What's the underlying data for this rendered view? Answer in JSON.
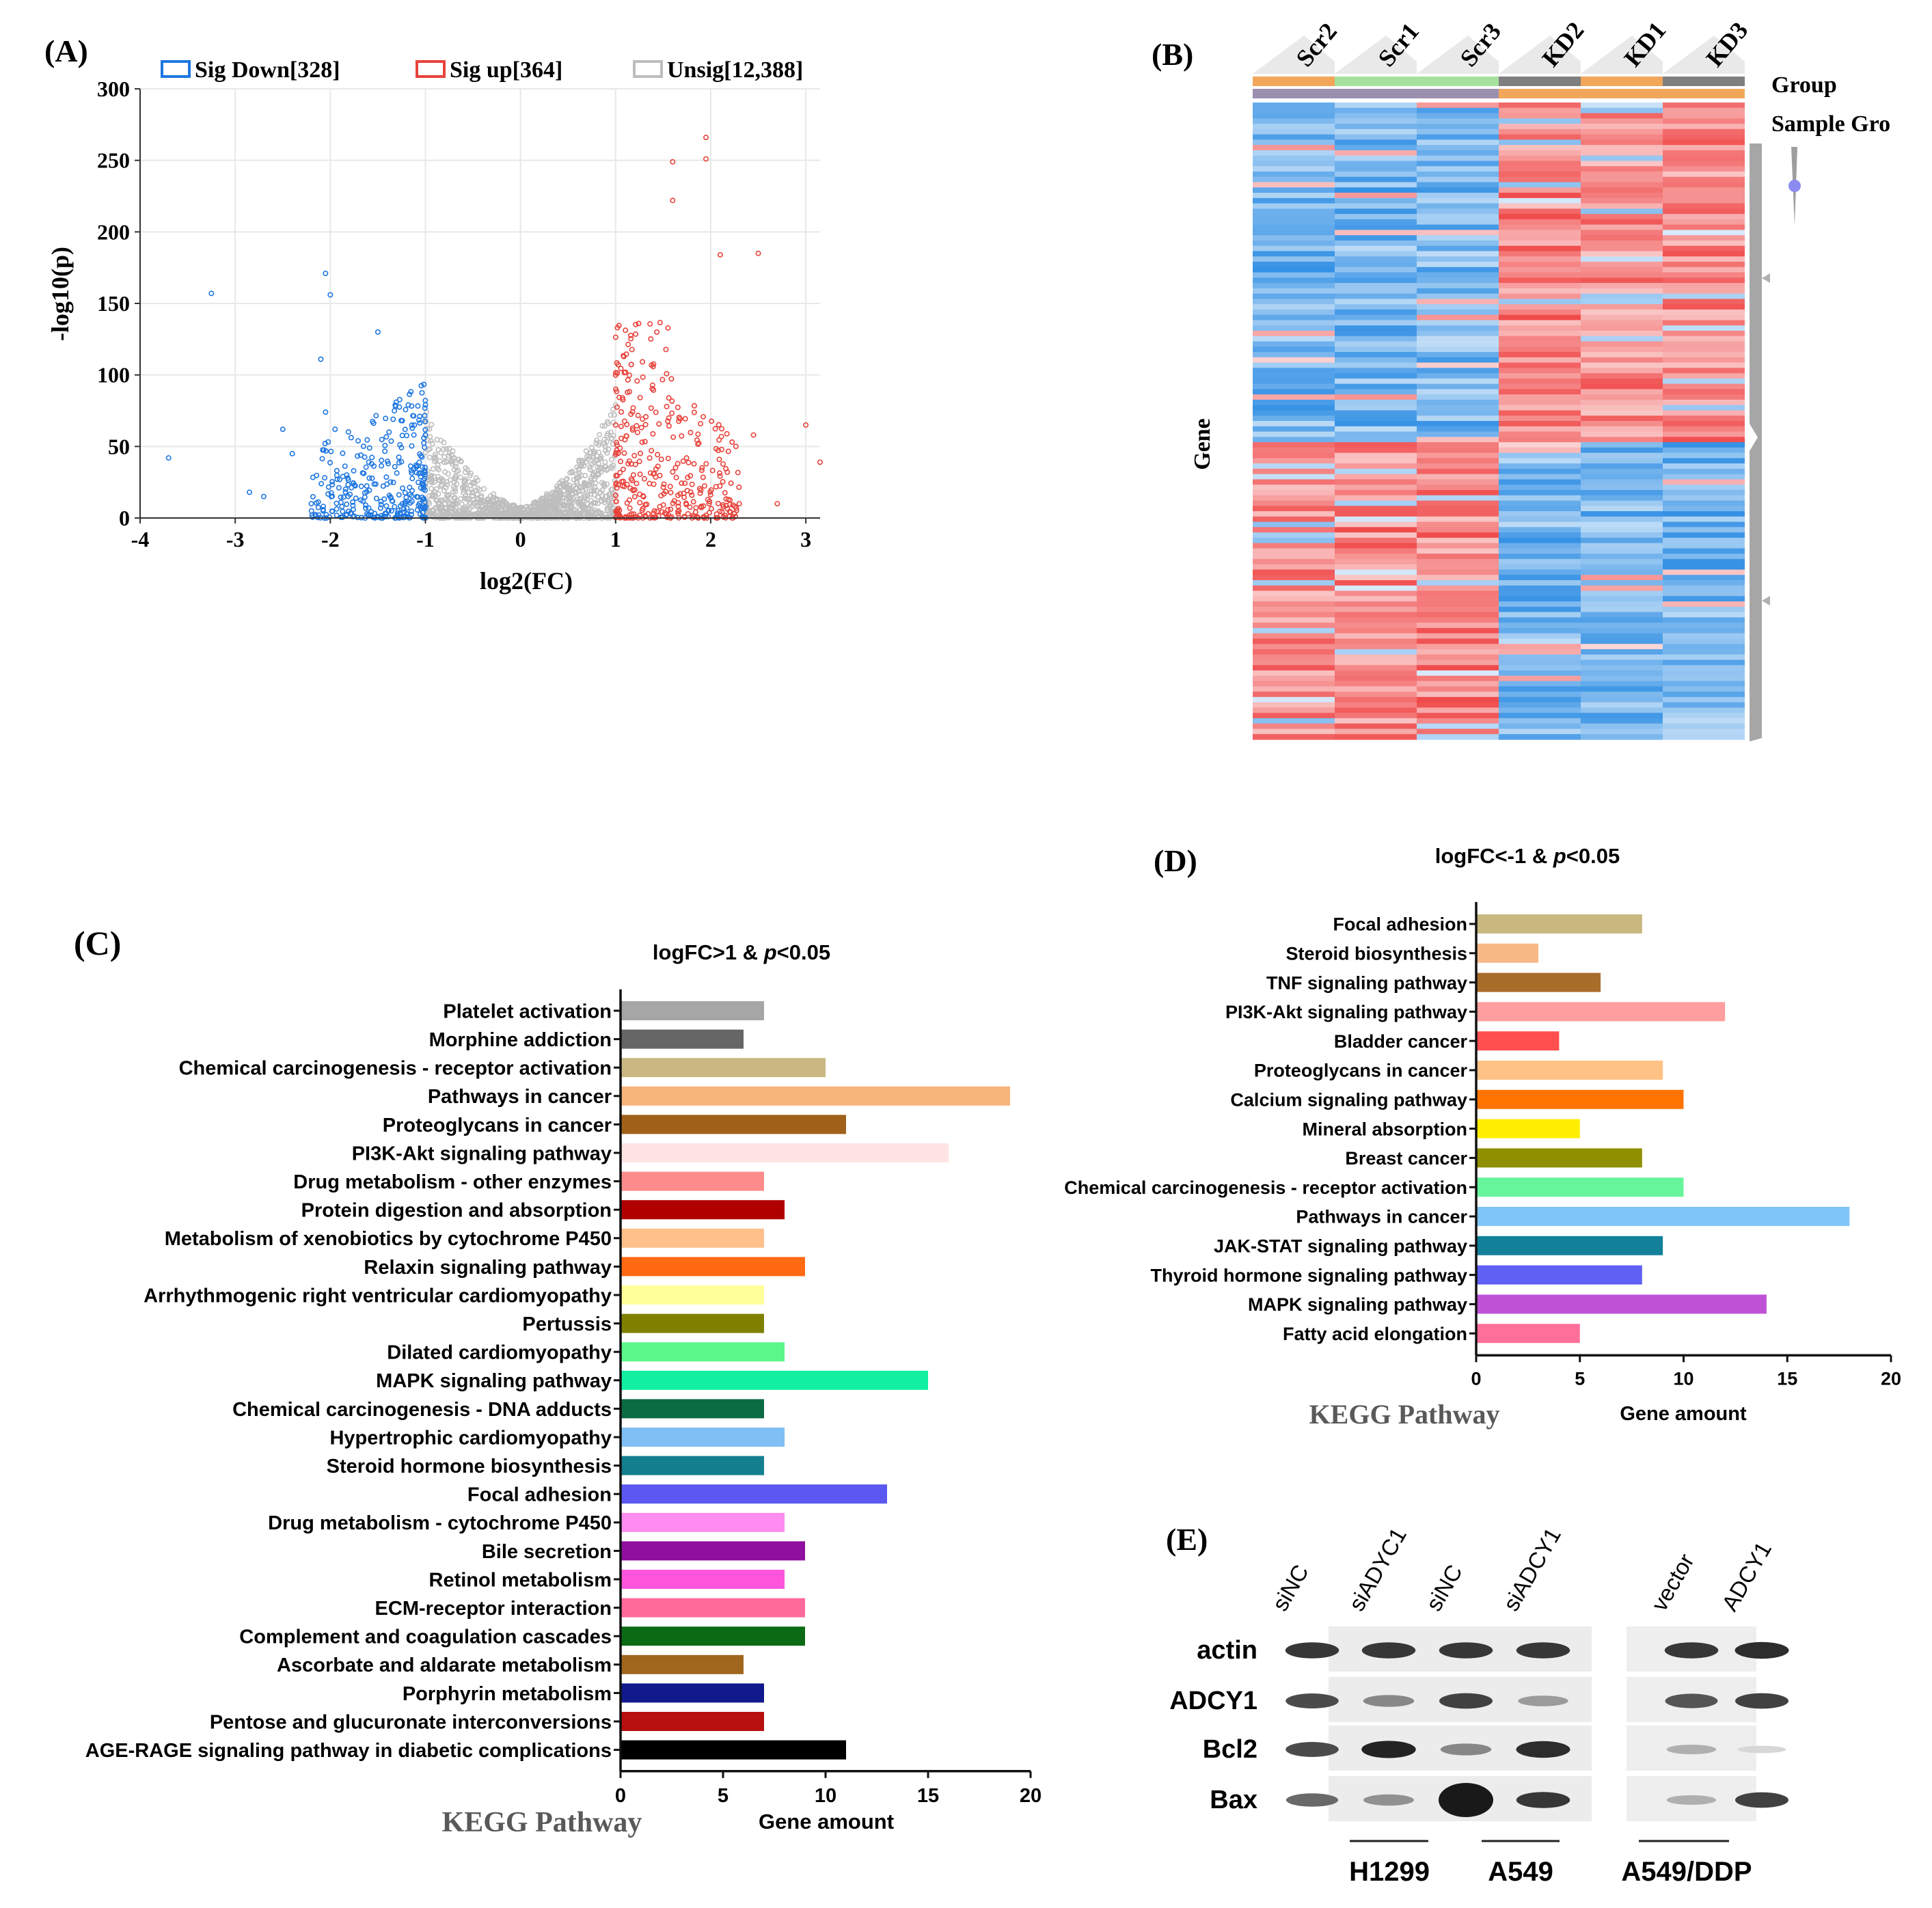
{
  "panels": {
    "A": "(A)",
    "B": "(B)",
    "C": "(C)",
    "D": "(D)",
    "E": "(E)"
  },
  "volcano": {
    "legend": [
      {
        "label": "Sig Down[328]",
        "color": "#1f77e0"
      },
      {
        "label": "Sig up[364]",
        "color": "#e8433b"
      },
      {
        "label": "Unsig[12,388]",
        "color": "#bdbdbd"
      }
    ],
    "xlabel": "log2(FC)",
    "ylabel": "-log10(p)",
    "xticks": [
      "-4",
      "-3",
      "-2",
      "-1",
      "0",
      "1",
      "2",
      "3"
    ],
    "yticks": [
      "0",
      "50",
      "100",
      "150",
      "200",
      "250",
      "300"
    ],
    "xlim": [
      -4,
      3.15
    ],
    "ylim": [
      0,
      300
    ],
    "down_outliers": [
      [
        -3.25,
        157
      ],
      [
        -2.05,
        171
      ],
      [
        -2.0,
        156
      ],
      [
        -1.5,
        130
      ],
      [
        -2.1,
        111
      ],
      [
        -2.05,
        74
      ],
      [
        -1.95,
        62
      ],
      [
        -3.7,
        42
      ],
      [
        -2.5,
        62
      ],
      [
        -2.4,
        45
      ],
      [
        -2.85,
        18
      ],
      [
        -2.7,
        15
      ],
      [
        -2.2,
        10
      ]
    ],
    "up_outliers": [
      [
        1.95,
        266
      ],
      [
        1.95,
        251
      ],
      [
        1.6,
        249
      ],
      [
        1.6,
        222
      ],
      [
        2.5,
        185
      ],
      [
        2.1,
        184
      ],
      [
        3.0,
        65
      ],
      [
        3.15,
        39
      ],
      [
        2.45,
        58
      ],
      [
        2.7,
        10
      ],
      [
        2.3,
        10
      ]
    ]
  },
  "heatmap": {
    "samples": [
      "Scr2",
      "Scr1",
      "Scr3",
      "KD2",
      "KD1",
      "KD3"
    ],
    "group_label": "Group",
    "sample_group_label": "Sample Gro",
    "row_label": "Gene",
    "rows": 120,
    "group_colors": [
      "#f2a65a",
      "#a8e0a0",
      "#a8e0a0",
      "#7f7f7f",
      "#f2a65a",
      "#7f7f7f"
    ],
    "sample_group_colors": [
      "#9b8fb0",
      "#9b8fb0",
      "#9b8fb0",
      "#f2a65a",
      "#f2a65a",
      "#f2a65a"
    ]
  },
  "chart_data": [
    {
      "type": "bar",
      "orientation": "horizontal",
      "title": "logFC>1 & p<0.05",
      "title_prefix": "logFC>1 & ",
      "title_p": "p",
      "title_suffix": "<0.05",
      "xlabel": "Gene amount",
      "category_axis_label": "KEGG Pathway",
      "xlim": [
        0,
        20
      ],
      "xticks": [
        "0",
        "5",
        "10",
        "15",
        "20"
      ],
      "categories": [
        "Platelet activation",
        "Morphine addiction",
        "Chemical carcinogenesis - receptor activation",
        "Pathways in cancer",
        "Proteoglycans in cancer",
        "PI3K-Akt signaling pathway",
        "Drug metabolism - other enzymes",
        "Protein digestion and absorption",
        "Metabolism of xenobiotics by cytochrome P450",
        "Relaxin signaling pathway",
        "Arrhythmogenic right ventricular cardiomyopathy",
        "Pertussis",
        "Dilated cardiomyopathy",
        "MAPK signaling pathway",
        "Chemical carcinogenesis - DNA adducts",
        "Hypertrophic cardiomyopathy",
        "Steroid hormone biosynthesis",
        "Focal adhesion",
        "Drug metabolism - cytochrome P450",
        "Bile secretion",
        "Retinol metabolism",
        "ECM-receptor interaction",
        "Complement and coagulation cascades",
        "Ascorbate and aldarate metabolism",
        "Porphyrin metabolism",
        "Pentose and glucuronate interconversions",
        "AGE-RAGE signaling pathway in diabetic complications"
      ],
      "values": [
        7,
        6,
        10,
        19,
        11,
        16,
        7,
        8,
        7,
        9,
        7,
        7,
        8,
        15,
        7,
        8,
        7,
        13,
        8,
        9,
        8,
        9,
        9,
        6,
        7,
        7,
        11
      ],
      "colors": [
        "#a6a6a6",
        "#666666",
        "#c9b882",
        "#f7b57c",
        "#a0611b",
        "#ffe4e4",
        "#ff8c8c",
        "#b00000",
        "#ffc08c",
        "#ff6a13",
        "#ffff99",
        "#808000",
        "#5cf78a",
        "#11f0a0",
        "#0b6b42",
        "#7fbff5",
        "#137f8f",
        "#5a58f0",
        "#ff8cf0",
        "#8f0f9f",
        "#ff55dd",
        "#ff6a9a",
        "#0b6b14",
        "#a0661e",
        "#111a8c",
        "#b80f0f",
        "#000000"
      ]
    },
    {
      "type": "bar",
      "orientation": "horizontal",
      "title": "logFC<-1 & p<0.05",
      "title_prefix": "logFC<-1 & ",
      "title_p": "p",
      "title_suffix": "<0.05",
      "xlabel": "Gene amount",
      "category_axis_label": "KEGG Pathway",
      "xlim": [
        0,
        20
      ],
      "xticks": [
        "0",
        "5",
        "10",
        "15",
        "20"
      ],
      "categories": [
        "Focal adhesion",
        "Steroid biosynthesis",
        "TNF signaling pathway",
        "PI3K-Akt signaling pathway",
        "Bladder cancer",
        "Proteoglycans in cancer",
        "Calcium signaling pathway",
        "Mineral absorption",
        "Breast cancer",
        "Chemical carcinogenesis - receptor activation",
        "Pathways in cancer",
        "JAK-STAT signaling pathway",
        "Thyroid hormone signaling pathway",
        "MAPK signaling pathway",
        "Fatty acid elongation"
      ],
      "values": [
        8,
        3,
        6,
        12,
        4,
        9,
        10,
        5,
        8,
        10,
        18,
        9,
        8,
        14,
        5
      ],
      "colors": [
        "#c8b880",
        "#f7b886",
        "#a96d2a",
        "#ff9e9e",
        "#ff4f4f",
        "#ffc285",
        "#ff7400",
        "#ffee00",
        "#8f8f00",
        "#66f59a",
        "#7ec4f7",
        "#13809a",
        "#6060f5",
        "#c052d8",
        "#ff6f9a"
      ]
    }
  ],
  "western": {
    "lane_labels": [
      "siNC",
      "siADYC1",
      "siNC",
      "siADCY1",
      "vector",
      "ADCY1"
    ],
    "rows": [
      "actin",
      "ADCY1",
      "Bcl2",
      "Bax"
    ],
    "cell_lines": [
      "H1299",
      "A549",
      "A549/DDP"
    ],
    "intensity": {
      "actin": [
        0.85,
        0.85,
        0.85,
        0.85,
        0.85,
        0.9
      ],
      "ADCY1": [
        0.75,
        0.45,
        0.8,
        0.35,
        0.7,
        0.8
      ],
      "Bcl2": [
        0.75,
        0.95,
        0.45,
        0.9,
        0.25,
        0.05
      ],
      "Bax": [
        0.6,
        0.4,
        1.0,
        0.85,
        0.25,
        0.8
      ]
    }
  }
}
